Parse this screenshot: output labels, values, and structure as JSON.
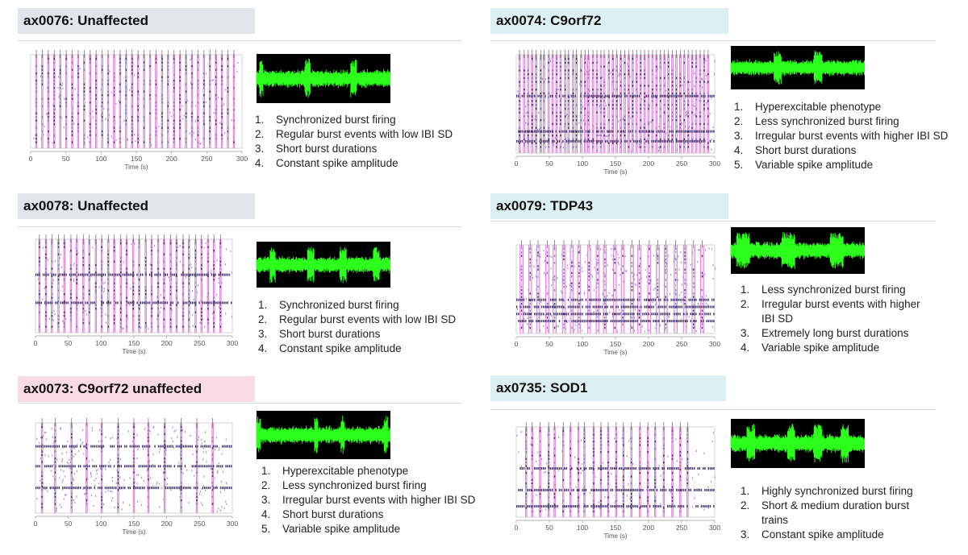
{
  "colors": {
    "header_gray": "#e1e5e9",
    "header_teal": "#dcf0f3",
    "header_pink": "#f9dbe5",
    "burst_line": "#d77ad3",
    "burst_fill": "#f5d3f3",
    "spike_dark": "#3f3566",
    "spike_light": "#8a7bc2",
    "trace_green": "#2cff1c",
    "trace_bg": "#000000"
  },
  "panels": [
    {
      "title": "ax0076: Unaffected",
      "header_color": "header_gray",
      "xlabel": "Time (s)",
      "ticks": [
        "0",
        "50",
        "100",
        "150",
        "200",
        "250",
        "300"
      ],
      "caption": "",
      "bursts": [
        8,
        16.5,
        25,
        33.5,
        42,
        50.5,
        59,
        67.5,
        76,
        84.5,
        93,
        101.5,
        110,
        118.5,
        127,
        135.5,
        144,
        152.5,
        161,
        169.5,
        178,
        186.5,
        195,
        203.5,
        212,
        220.5,
        229,
        237.5,
        246,
        254.5,
        263,
        271.5,
        280,
        288.5
      ],
      "burst_width": 1.2,
      "bands": [],
      "density": 0.12,
      "trace_bursts": [
        {
          "x": 0.02,
          "w": 0.03
        },
        {
          "x": 0.36,
          "w": 0.04
        },
        {
          "x": 0.7,
          "w": 0.05
        }
      ],
      "notes": [
        "Synchronized burst firing",
        "Regular burst events with low IBI SD",
        "Short burst durations",
        "Constant spike amplitude"
      ]
    },
    {
      "title": "ax0074: C9orf72",
      "header_color": "header_teal",
      "xlabel": "Time (s)",
      "ticks": [
        "0",
        "50",
        "100",
        "150",
        "200",
        "250",
        "300"
      ],
      "caption": "",
      "bursts": [
        5,
        12,
        18,
        24,
        30,
        37,
        42,
        49,
        55,
        61,
        67,
        74,
        79,
        86,
        91,
        98,
        104,
        109,
        116,
        122,
        128,
        133,
        140,
        146,
        152,
        158,
        164,
        170,
        176,
        182,
        188,
        194,
        200,
        206,
        212,
        218,
        224,
        230,
        236,
        242,
        248,
        254,
        260,
        266,
        272,
        278,
        284,
        290
      ],
      "burst_width": 2.2,
      "bands": [
        0.42,
        0.78,
        0.88
      ],
      "density": 0.22,
      "trace_bursts": [
        {
          "x": 0.32,
          "w": 0.06
        },
        {
          "x": 0.62,
          "w": 0.06
        }
      ],
      "notes": [
        "Hyperexcitable phenotype",
        "Less synchronized burst firing",
        "Irregular burst events with higher IBI SD",
        "Short burst durations",
        "Variable spike amplitude"
      ]
    },
    {
      "title": "ax0078: Unaffected",
      "header_color": "header_gray",
      "xlabel": "Time (s)",
      "ticks": [
        "0",
        "50",
        "100",
        "150",
        "200",
        "250",
        "300"
      ],
      "caption": "",
      "bursts": [
        6,
        16,
        25,
        35,
        44,
        54,
        63,
        73,
        82,
        92,
        101,
        111,
        120,
        130,
        139,
        149,
        158,
        168,
        177,
        187,
        196,
        206,
        215,
        225,
        234,
        244,
        253,
        263,
        272,
        282
      ],
      "burst_width": 1.6,
      "bands": [
        0.38,
        0.68
      ],
      "density": 0.14,
      "trace_bursts": [
        {
          "x": 0.1,
          "w": 0.04
        },
        {
          "x": 0.38,
          "w": 0.05
        },
        {
          "x": 0.62,
          "w": 0.05
        },
        {
          "x": 0.87,
          "w": 0.05
        }
      ],
      "notes": [
        "Synchronized burst firing",
        "Regular burst events with low IBI SD",
        "Short burst durations",
        "Constant spike amplitude"
      ]
    },
    {
      "title": "ax0079: TDP43",
      "header_color": "header_teal",
      "xlabel": "Time (s)",
      "ticks": [
        "0",
        "50",
        "100",
        "150",
        "200",
        "250",
        "300"
      ],
      "caption": "",
      "bursts": [
        8,
        21,
        33,
        47,
        58,
        72,
        84,
        95,
        110,
        123,
        134,
        149,
        161,
        175,
        186,
        201,
        214,
        226,
        241,
        255,
        268,
        281
      ],
      "burst_width": 4.5,
      "bands": [
        0.62,
        0.7,
        0.78,
        0.86
      ],
      "density": 0.3,
      "trace_bursts": [
        {
          "x": 0.04,
          "w": 0.1
        },
        {
          "x": 0.38,
          "w": 0.1
        },
        {
          "x": 0.74,
          "w": 0.1
        }
      ],
      "notes": [
        "Less synchronized burst firing",
        "Irregular burst events with higher IBI SD",
        "Extremely long burst durations",
        "Variable spike amplitude"
      ]
    },
    {
      "title": "ax0073: C9orf72 unaffected",
      "header_color": "header_pink",
      "xlabel": "Time (s)",
      "ticks": [
        "0",
        "50",
        "100",
        "150",
        "200",
        "250",
        "300"
      ],
      "caption": "",
      "bursts": [
        10,
        30,
        55,
        78,
        101,
        126,
        150,
        172,
        197,
        222,
        246,
        270
      ],
      "burst_width": 1.4,
      "bands": [
        0.26,
        0.48,
        0.72
      ],
      "density": 0.3,
      "trace_bursts": [
        {
          "x": 0.0,
          "w": 0.03
        },
        {
          "x": 0.43,
          "w": 0.03
        },
        {
          "x": 0.63,
          "w": 0.03
        },
        {
          "x": 0.95,
          "w": 0.03
        }
      ],
      "notes": [
        "Hyperexcitable phenotype",
        "Less synchronized burst firing",
        "Irregular burst events with higher IBI SD",
        "Short burst durations",
        "Variable spike amplitude"
      ]
    },
    {
      "title": "ax0735: SOD1",
      "header_color": "header_teal",
      "xlabel": "Time (s)",
      "ticks": [
        "0",
        "50",
        "100",
        "150",
        "200",
        "250",
        "300"
      ],
      "caption": "",
      "bursts": [
        15,
        24,
        36,
        49,
        58,
        71,
        82,
        94,
        103,
        117,
        128,
        139,
        151,
        162,
        174,
        187,
        199,
        210,
        223,
        236,
        248,
        259
      ],
      "burst_width": 1.6,
      "bands": [
        0.46,
        0.7,
        0.88
      ],
      "density": 0.1,
      "trace_bursts": [
        {
          "x": 0.12,
          "w": 0.06
        },
        {
          "x": 0.42,
          "w": 0.06
        },
        {
          "x": 0.62,
          "w": 0.06
        },
        {
          "x": 0.82,
          "w": 0.06
        }
      ],
      "notes": [
        "Highly synchronized burst firing",
        "Short & medium duration burst trains",
        "Constant spike amplitude"
      ]
    }
  ]
}
